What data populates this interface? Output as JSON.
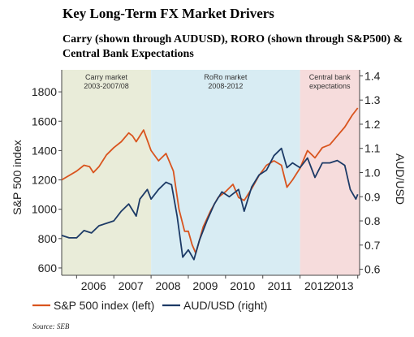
{
  "title": "Key Long-Term FX Market Drivers",
  "subtitle": "Carry (shown through AUDUSD), RORO (shown through S&P500) & Central Bank Expectations",
  "source": "Source: SEB",
  "colors": {
    "sp500": "#d9541e",
    "audusd": "#1c3a66",
    "carry_region": "#e9ecd9",
    "roro_region": "#d8ecf3",
    "cb_region": "#f6dcdc"
  },
  "chart_data": {
    "type": "line",
    "title": "",
    "xlabel": "",
    "ylabel": "S&P 500 index",
    "y2label": "AUD/USD",
    "xlim": [
      2005.6,
      2013.6
    ],
    "ylim": [
      550,
      1950
    ],
    "y2lim": [
      0.575,
      1.425
    ],
    "x_ticks": [
      2006,
      2007,
      2008,
      2009,
      2010,
      2011,
      2012,
      2013
    ],
    "y_ticks": [
      600,
      800,
      1000,
      1200,
      1400,
      1600,
      1800
    ],
    "y2_ticks": [
      0.6,
      0.7,
      0.8,
      0.9,
      1.0,
      1.1,
      1.2,
      1.3,
      1.4
    ],
    "y2_tick_labels": [
      "0.6",
      "0.7",
      "0.8",
      "0.9",
      "1.0",
      "1.1",
      "1.2",
      "1.3",
      "1.4"
    ],
    "regions": [
      {
        "label_lines": [
          "Carry market",
          "2003-2007/08"
        ],
        "x_start": 2005.6,
        "x_end": 2008.0,
        "color_key": "carry_region"
      },
      {
        "label_lines": [
          "RoRo market",
          "2008-2012"
        ],
        "x_start": 2008.0,
        "x_end": 2012.0,
        "color_key": "roro_region"
      },
      {
        "label_lines": [
          "Central bank",
          "expectations"
        ],
        "x_start": 2012.0,
        "x_end": 2013.6,
        "color_key": "cb_region"
      }
    ],
    "series": [
      {
        "name": "S&P 500 index (left)",
        "axis": "left",
        "color_key": "sp500",
        "x": [
          2005.6,
          2005.8,
          2006.0,
          2006.2,
          2006.35,
          2006.45,
          2006.6,
          2006.8,
          2007.0,
          2007.2,
          2007.4,
          2007.5,
          2007.6,
          2007.8,
          2008.0,
          2008.2,
          2008.4,
          2008.6,
          2008.75,
          2008.9,
          2009.0,
          2009.1,
          2009.2,
          2009.4,
          2009.6,
          2009.8,
          2010.0,
          2010.2,
          2010.35,
          2010.5,
          2010.7,
          2010.9,
          2011.1,
          2011.3,
          2011.5,
          2011.65,
          2011.8,
          2012.0,
          2012.2,
          2012.4,
          2012.6,
          2012.8,
          2013.0,
          2013.2,
          2013.4,
          2013.55
        ],
        "y": [
          1200,
          1230,
          1260,
          1300,
          1290,
          1250,
          1290,
          1370,
          1420,
          1460,
          1520,
          1500,
          1460,
          1540,
          1400,
          1330,
          1380,
          1260,
          1000,
          850,
          850,
          760,
          700,
          880,
          990,
          1080,
          1120,
          1170,
          1080,
          1060,
          1140,
          1230,
          1300,
          1330,
          1300,
          1150,
          1200,
          1280,
          1400,
          1350,
          1420,
          1440,
          1500,
          1560,
          1640,
          1690
        ]
      },
      {
        "name": "AUD/USD (right)",
        "axis": "right",
        "color_key": "audusd",
        "x": [
          2005.6,
          2005.8,
          2006.0,
          2006.2,
          2006.4,
          2006.6,
          2006.8,
          2007.0,
          2007.2,
          2007.4,
          2007.6,
          2007.7,
          2007.9,
          2008.0,
          2008.2,
          2008.4,
          2008.55,
          2008.7,
          2008.85,
          2009.0,
          2009.15,
          2009.3,
          2009.5,
          2009.7,
          2009.9,
          2010.1,
          2010.35,
          2010.5,
          2010.7,
          2010.9,
          2011.1,
          2011.3,
          2011.5,
          2011.65,
          2011.8,
          2012.0,
          2012.2,
          2012.4,
          2012.6,
          2012.8,
          2013.0,
          2013.2,
          2013.35,
          2013.5,
          2013.55
        ],
        "y": [
          0.74,
          0.73,
          0.73,
          0.76,
          0.75,
          0.78,
          0.79,
          0.8,
          0.84,
          0.87,
          0.82,
          0.89,
          0.93,
          0.89,
          0.93,
          0.96,
          0.95,
          0.82,
          0.65,
          0.68,
          0.64,
          0.72,
          0.8,
          0.87,
          0.92,
          0.9,
          0.93,
          0.84,
          0.94,
          0.99,
          1.01,
          1.07,
          1.1,
          1.02,
          1.04,
          1.02,
          1.06,
          0.98,
          1.04,
          1.04,
          1.05,
          1.03,
          0.93,
          0.89,
          0.91
        ]
      }
    ],
    "legend": "bottom"
  }
}
